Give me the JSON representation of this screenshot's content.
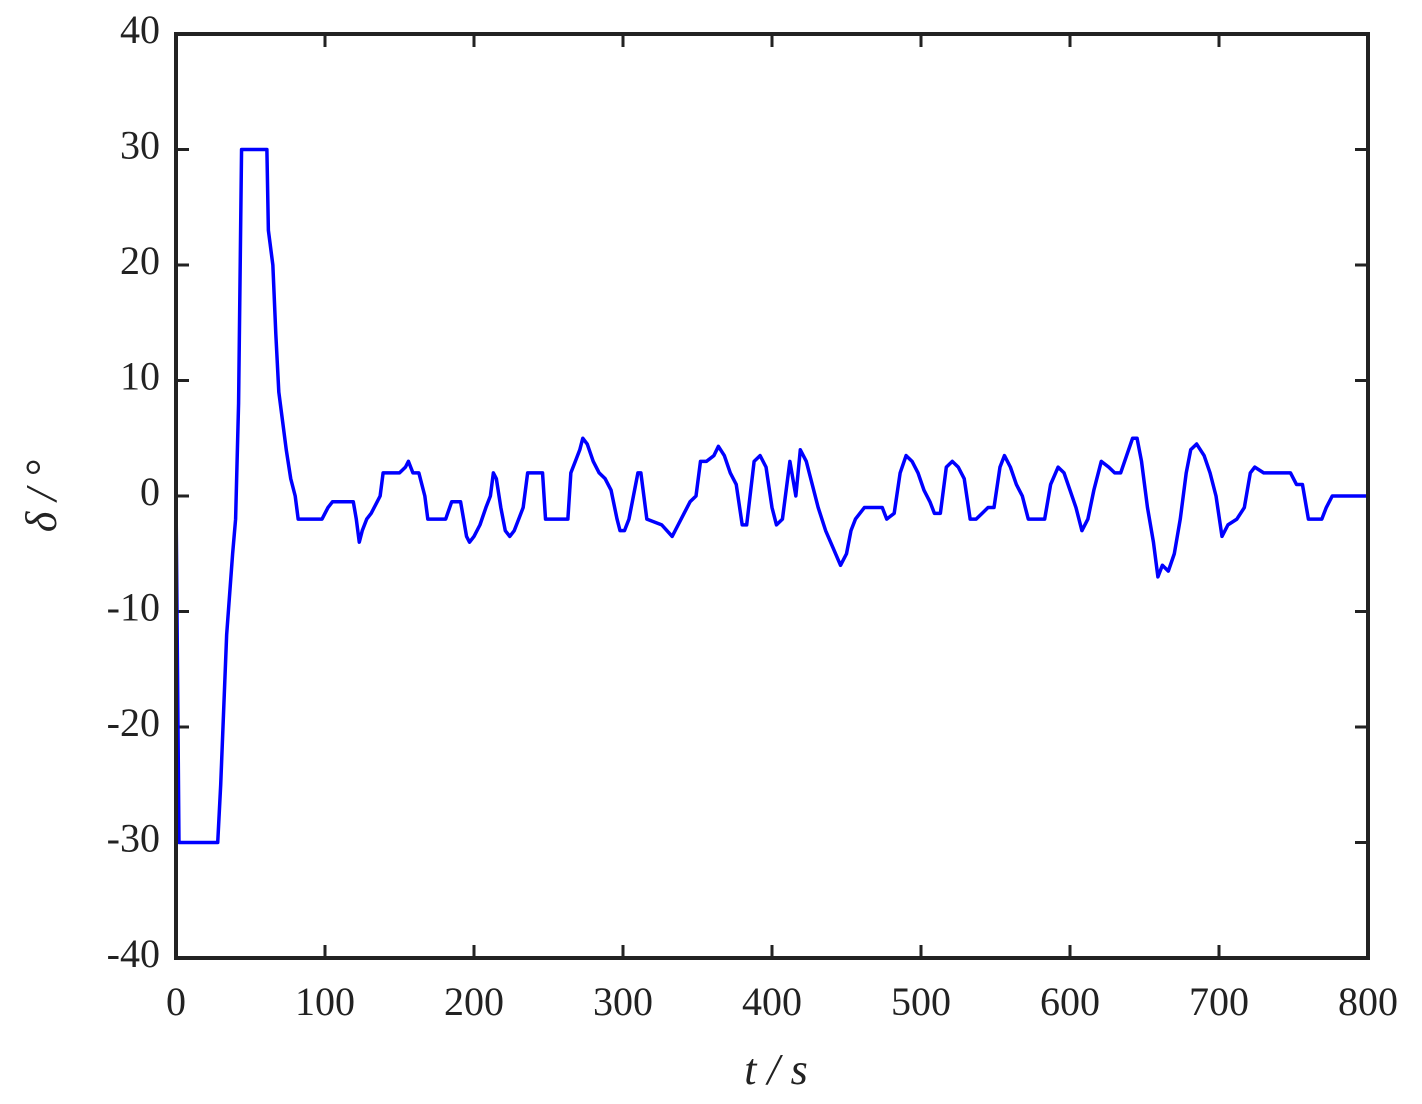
{
  "chart_data": {
    "type": "line",
    "xlabel": "t / s",
    "ylabel": "δ / °",
    "color": "#0000ff",
    "x": [
      0,
      1,
      2,
      28,
      30,
      34,
      38,
      40,
      42,
      44,
      61,
      62,
      63,
      65,
      67,
      69,
      71,
      74,
      77,
      80,
      82,
      84,
      98,
      102,
      105,
      119,
      121,
      123,
      125,
      128,
      131,
      135,
      137,
      139,
      150,
      154,
      156,
      159,
      163,
      167,
      169,
      181,
      185,
      191,
      193,
      195,
      197,
      200,
      204,
      208,
      211,
      213,
      215,
      218,
      221,
      224,
      227,
      230,
      233,
      236,
      238,
      246,
      248,
      263,
      265,
      268,
      271,
      273,
      276,
      280,
      284,
      288,
      292,
      296,
      298,
      301,
      304,
      307,
      310,
      312,
      316,
      326,
      333,
      337,
      341,
      345,
      349,
      352,
      356,
      361,
      364,
      368,
      372,
      376,
      380,
      383,
      388,
      392,
      396,
      400,
      403,
      407,
      412,
      416,
      419,
      423,
      427,
      431,
      436,
      441,
      446,
      450,
      453,
      456,
      462,
      474,
      477,
      482,
      486,
      490,
      494,
      498,
      502,
      506,
      509,
      513,
      517,
      521,
      525,
      529,
      533,
      537,
      541,
      545,
      549,
      553,
      556,
      560,
      564,
      568,
      572,
      578,
      583,
      587,
      592,
      596,
      600,
      604,
      608,
      612,
      616,
      621,
      626,
      630,
      634,
      638,
      642,
      645,
      648,
      652,
      656,
      659,
      662,
      666,
      670,
      674,
      678,
      681,
      685,
      690,
      694,
      698,
      702,
      706,
      712,
      717,
      721,
      724,
      730,
      748,
      752,
      756,
      760,
      769,
      772,
      776,
      800
    ],
    "values": [
      0,
      -15,
      -30,
      -30,
      -25,
      -12,
      -5,
      -2,
      8,
      30,
      30,
      23,
      22,
      20,
      14,
      9,
      7,
      4,
      1.5,
      0,
      -2,
      -2,
      -2,
      -1,
      -0.5,
      -0.5,
      -2,
      -4,
      -3,
      -2,
      -1.5,
      -0.5,
      0,
      2,
      2,
      2.5,
      3,
      2,
      2,
      0,
      -2,
      -2,
      -0.5,
      -0.5,
      -2,
      -3.5,
      -4,
      -3.5,
      -2.5,
      -1,
      0,
      2,
      1.5,
      -1,
      -3,
      -3.5,
      -3,
      -2,
      -1,
      2,
      2,
      2,
      -2,
      -2,
      2,
      3,
      4,
      5,
      4.5,
      3,
      2,
      1.5,
      0.5,
      -2,
      -3,
      -3,
      -2,
      0,
      2,
      2,
      -2,
      -2.5,
      -3.5,
      -2.5,
      -1.5,
      -0.5,
      0,
      3,
      3,
      3.5,
      4.3,
      3.5,
      2,
      1,
      -2.5,
      -2.5,
      3,
      3.5,
      2.5,
      -1,
      -2.5,
      -2,
      3,
      0,
      4,
      3,
      1,
      -1,
      -3,
      -4.5,
      -6,
      -5,
      -3,
      -2,
      -1,
      -1,
      -2,
      -1.5,
      2,
      3.5,
      3,
      2,
      0.5,
      -0.5,
      -1.5,
      -1.5,
      2.5,
      3,
      2.5,
      1.5,
      -2,
      -2,
      -1.5,
      -1,
      -1,
      2.5,
      3.5,
      2.5,
      1,
      0,
      -2,
      -2,
      -2,
      1,
      2.5,
      2,
      0.5,
      -1,
      -3,
      -2,
      0.5,
      3,
      2.5,
      2,
      2,
      3.5,
      5,
      5,
      3,
      -1,
      -4,
      -7,
      -6,
      -6.5,
      -5,
      -2,
      2,
      4,
      4.5,
      3.5,
      2,
      0,
      -3.5,
      -2.5,
      -2,
      -1,
      2,
      2.5,
      2,
      2,
      1,
      1,
      -2,
      -2,
      -1,
      0,
      0
    ],
    "xlim": [
      0,
      800
    ],
    "xticks": [
      0,
      100,
      200,
      300,
      400,
      500,
      600,
      700,
      800
    ],
    "ylim": [
      -40,
      40
    ],
    "yticks": [
      -40,
      -30,
      -20,
      -10,
      0,
      10,
      20,
      30,
      40
    ],
    "grid": false
  }
}
